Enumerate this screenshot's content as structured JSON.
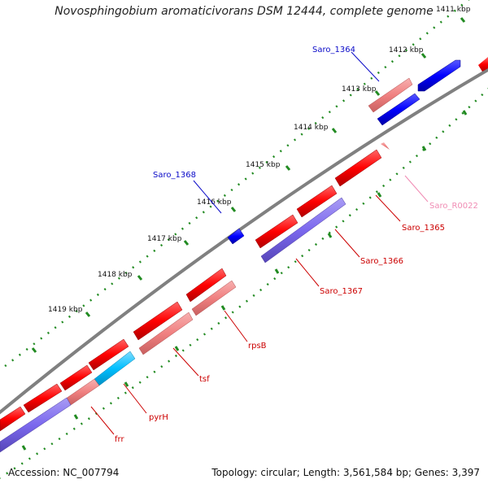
{
  "title": "Novosphingobium aromaticivorans DSM 12444, complete genome",
  "footer": {
    "accession": "Accession: NC_007794",
    "summary": "Topology: circular; Length: 3,561,584 bp; Genes: 3,397"
  },
  "ticks": [
    "1411 kbp",
    "1412 kbp",
    "1413 kbp",
    "1414 kbp",
    "1415 kbp",
    "1416 kbp",
    "1417 kbp",
    "1418 kbp",
    "1419 kbp"
  ],
  "labels": [
    {
      "id": "saro_1364",
      "text": "Saro_1364",
      "color": "#0a0ac8"
    },
    {
      "id": "saro_1368",
      "text": "Saro_1368",
      "color": "#0a0ac8"
    },
    {
      "id": "saro_r0022",
      "text": "Saro_R0022",
      "color": "#f08cb4"
    },
    {
      "id": "saro_1365",
      "text": "Saro_1365",
      "color": "#cc0000"
    },
    {
      "id": "saro_1366",
      "text": "Saro_1366",
      "color": "#cc0000"
    },
    {
      "id": "saro_1367",
      "text": "Saro_1367",
      "color": "#cc0000"
    },
    {
      "id": "rpsb",
      "text": "rpsB",
      "color": "#cc0000"
    },
    {
      "id": "tsf",
      "text": "tsf",
      "color": "#cc0000"
    },
    {
      "id": "pyrh",
      "text": "pyrH",
      "color": "#cc0000"
    },
    {
      "id": "frr",
      "text": "frr",
      "color": "#cc0000"
    }
  ],
  "colors": {
    "backbone": "#808080",
    "cds_red": "#ff0000",
    "cds_pink": "#f08080",
    "cds_blue": "#0000ff",
    "cds_purple": "#7b68ee",
    "cds_cyan": "#00bfff",
    "rna_pink": "#ffb6c1",
    "tick_green": "#228b22"
  }
}
